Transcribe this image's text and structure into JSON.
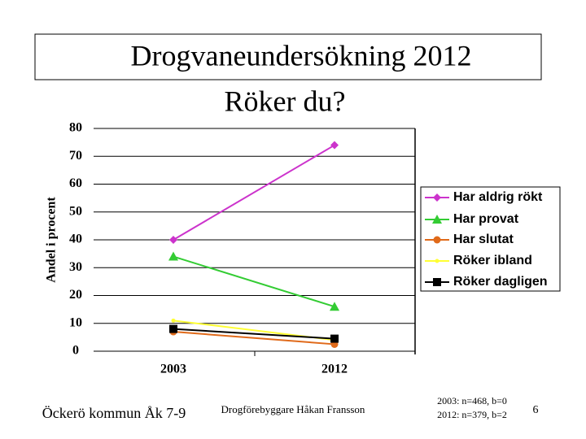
{
  "chart_data": {
    "type": "line",
    "title": "Drogvaneundersökning 2012",
    "subtitle": "Röker du?",
    "y_label": "Andel i procent",
    "categories": [
      "2003",
      "2012"
    ],
    "series": [
      {
        "name": "Har aldrig rökt",
        "color": "#cc33cc",
        "marker": "diamond",
        "values": [
          40,
          74
        ]
      },
      {
        "name": "Har provat",
        "color": "#33cc33",
        "marker": "triangle",
        "values": [
          34,
          16
        ]
      },
      {
        "name": "Har slutat",
        "color": "#e06a1a",
        "marker": "circle",
        "values": [
          7,
          2.5
        ]
      },
      {
        "name": "Röker ibland",
        "color": "#ffff33",
        "marker": "dot",
        "values": [
          11,
          4
        ]
      },
      {
        "name": "Röker dagligen",
        "color": "#000000",
        "marker": "square",
        "values": [
          8,
          4.5
        ]
      }
    ],
    "ylim": [
      0,
      80
    ],
    "yticks": [
      0,
      10,
      20,
      30,
      40,
      50,
      60,
      70,
      80
    ],
    "grid": true,
    "legend": "right"
  },
  "footer": {
    "left": "Öckerö kommun Åk 7-9",
    "center": "Drogförebyggare Håkan Fransson",
    "notes": [
      "2003: n=468, b=0",
      "2012: n=379, b=2"
    ],
    "page": "6"
  }
}
